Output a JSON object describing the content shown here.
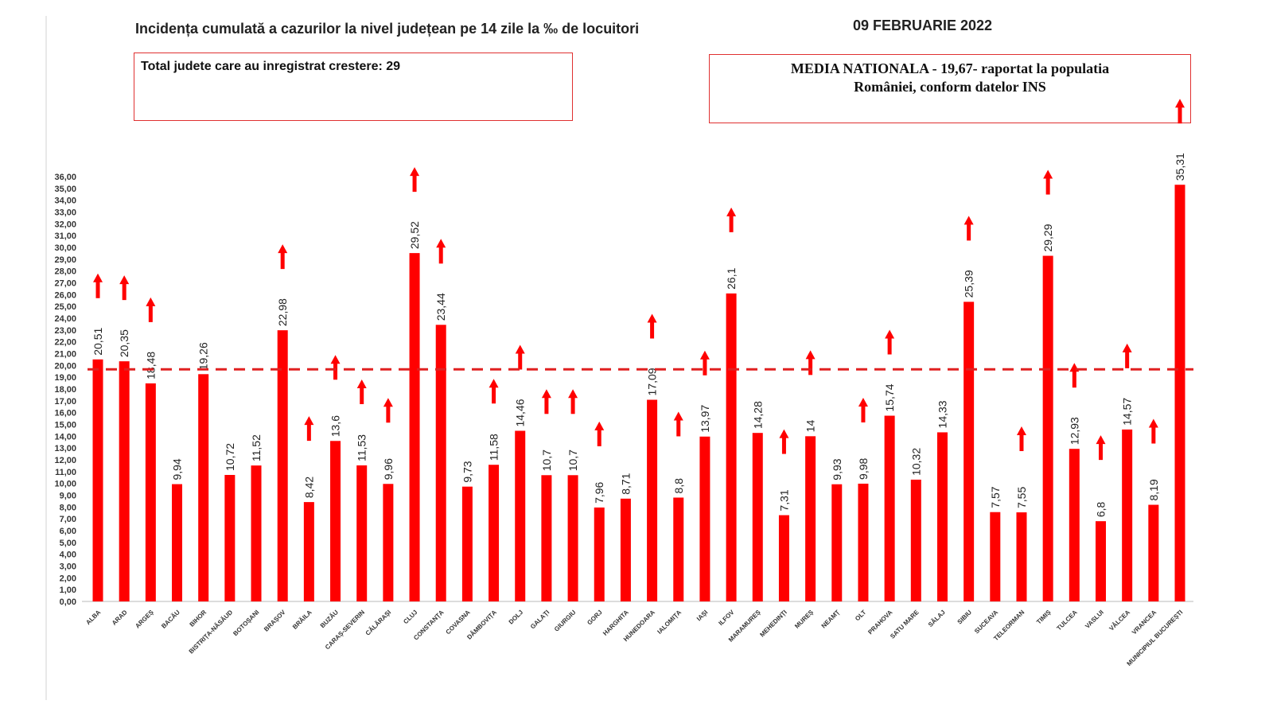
{
  "header": {
    "title": "Incidența cumulată a cazurilor la nivel județean pe 14 zile la ‰ de locuitori",
    "date": "09 FEBRUARIE 2022"
  },
  "boxes": {
    "left_text": "Total judete care au inregistrat crestere: 29",
    "right_line1": "MEDIA NATIONALA - 19,67-  raportat la populatia",
    "right_line2": "României, conform datelor INS"
  },
  "colors": {
    "bar": "#ff0000",
    "average_line": "#e02020",
    "arrow": "#ff0000",
    "box_border": "#e03030"
  },
  "chart_data": {
    "type": "bar",
    "title": "Incidența cumulată a cazurilor la nivel județean pe 14 zile la ‰ de locuitori",
    "categories": [
      "ALBA",
      "ARAD",
      "ARGEȘ",
      "BACĂU",
      "BIHOR",
      "BISTRIȚA-NĂSĂUD",
      "BOTOȘANI",
      "BRAȘOV",
      "BRĂILA",
      "BUZĂU",
      "CARAȘ-SEVERIN",
      "CĂLĂRAȘI",
      "CLUJ",
      "CONSTANȚA",
      "COVASNA",
      "DÂMBOVIȚA",
      "DOLJ",
      "GALAȚI",
      "GIURGIU",
      "GORJ",
      "HARGHITA",
      "HUNEDOARA",
      "IALOMIȚA",
      "IAȘI",
      "ILFOV",
      "MARAMUREȘ",
      "MEHEDINȚI",
      "MUREȘ",
      "NEAMȚ",
      "OLT",
      "PRAHOVA",
      "SATU MARE",
      "SĂLAJ",
      "SIBIU",
      "SUCEAVA",
      "TELEORMAN",
      "TIMIȘ",
      "TULCEA",
      "VASLUI",
      "VÂLCEA",
      "VRANCEA",
      "MUNICIPIUL BUCUREȘTI"
    ],
    "values": [
      20.51,
      20.35,
      18.48,
      9.94,
      19.26,
      10.72,
      11.52,
      22.98,
      8.42,
      13.6,
      11.53,
      9.96,
      29.52,
      23.44,
      9.73,
      11.58,
      14.46,
      10.7,
      10.7,
      7.96,
      8.71,
      17.09,
      8.8,
      13.97,
      26.1,
      14.28,
      7.31,
      14,
      9.93,
      9.98,
      15.74,
      10.32,
      14.33,
      25.39,
      7.57,
      7.55,
      29.29,
      12.93,
      6.8,
      14.57,
      8.19,
      35.31
    ],
    "increase_arrow": [
      true,
      true,
      true,
      false,
      false,
      false,
      false,
      true,
      true,
      true,
      true,
      true,
      true,
      true,
      false,
      true,
      true,
      true,
      true,
      true,
      false,
      true,
      true,
      true,
      true,
      false,
      true,
      true,
      false,
      true,
      true,
      false,
      false,
      true,
      false,
      true,
      true,
      true,
      true,
      true,
      true,
      true
    ],
    "reference_line": {
      "value": 19.67,
      "style": "dashed"
    },
    "ylim": [
      0,
      36
    ],
    "ytick_step": 1,
    "ytick_format": "0,00",
    "grid": false,
    "xlabel": "",
    "ylabel": ""
  }
}
